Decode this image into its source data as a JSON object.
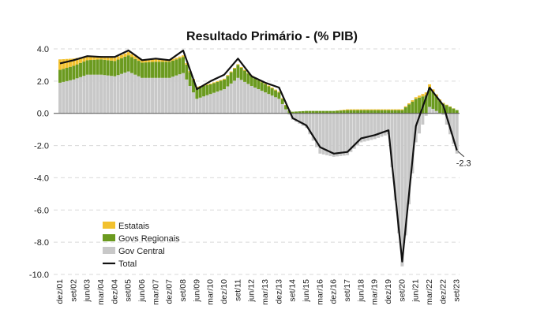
{
  "title": "Resultado Primário - (% PIB)",
  "chart_data": {
    "type": "bar",
    "title": "Resultado Primário - (% PIB)",
    "xlabel": "",
    "ylabel": "",
    "ylim": [
      -10,
      4
    ],
    "yticks": [
      "4.0",
      "2.0",
      "0.0",
      "-2.0",
      "-4.0",
      "-6.0",
      "-8.0",
      "-10.0"
    ],
    "xticks": [
      "dez/01",
      "set/02",
      "jun/03",
      "mar/04",
      "dez/04",
      "set/05",
      "jun/06",
      "mar/07",
      "dez/07",
      "set/08",
      "jun/09",
      "mar/10",
      "dez/10",
      "set/11",
      "jun/12",
      "mar/13",
      "dez/13",
      "set/14",
      "jun/15",
      "mar/16",
      "dez/16",
      "set/17",
      "jun/18",
      "mar/19",
      "dez/19",
      "set/20",
      "jun/21",
      "mar/22",
      "dez/22",
      "set/23"
    ],
    "grid": true,
    "legend_position": "bottom-left",
    "series": [
      {
        "name": "Estatais",
        "type": "stacked-bar",
        "color": "#F2C12E",
        "points": [
          [
            "dez/01",
            0.65
          ],
          [
            "set/02",
            0.45
          ],
          [
            "jun/03",
            0.25
          ],
          [
            "mar/04",
            0.2
          ],
          [
            "dez/04",
            0.2
          ],
          [
            "set/05",
            0.2
          ],
          [
            "jun/06",
            0.15
          ],
          [
            "mar/07",
            0.15
          ],
          [
            "dez/07",
            0.1
          ],
          [
            "set/08",
            0.1
          ],
          [
            "jun/09",
            0.05
          ],
          [
            "mar/10",
            0.05
          ],
          [
            "dez/10",
            0.05
          ],
          [
            "set/11",
            0.05
          ],
          [
            "jun/12",
            0.05
          ],
          [
            "mar/13",
            0.05
          ],
          [
            "dez/13",
            0.05
          ],
          [
            "set/14",
            0.0
          ],
          [
            "jun/15",
            0.0
          ],
          [
            "mar/16",
            0.0
          ],
          [
            "dez/16",
            0.0
          ],
          [
            "set/17",
            0.05
          ],
          [
            "jun/18",
            0.05
          ],
          [
            "mar/19",
            0.05
          ],
          [
            "dez/19",
            0.05
          ],
          [
            "set/20",
            0.05
          ],
          [
            "jun/21",
            0.1
          ],
          [
            "mar/22",
            0.2
          ],
          [
            "dez/22",
            0.05
          ],
          [
            "set/23",
            0.0
          ]
        ]
      },
      {
        "name": "Govs Regionais",
        "type": "stacked-bar",
        "color": "#6B9A1F",
        "points": [
          [
            "dez/01",
            0.8
          ],
          [
            "set/02",
            0.85
          ],
          [
            "jun/03",
            0.9
          ],
          [
            "mar/04",
            0.95
          ],
          [
            "dez/04",
            0.95
          ],
          [
            "set/05",
            1.0
          ],
          [
            "jun/06",
            0.95
          ],
          [
            "mar/07",
            1.0
          ],
          [
            "dez/07",
            1.0
          ],
          [
            "set/08",
            1.0
          ],
          [
            "jun/09",
            0.7
          ],
          [
            "mar/10",
            0.6
          ],
          [
            "dez/10",
            0.6
          ],
          [
            "set/11",
            0.8
          ],
          [
            "jun/12",
            0.6
          ],
          [
            "mar/13",
            0.5
          ],
          [
            "dez/13",
            0.4
          ],
          [
            "set/14",
            0.1
          ],
          [
            "jun/15",
            0.15
          ],
          [
            "mar/16",
            0.15
          ],
          [
            "dez/16",
            0.15
          ],
          [
            "set/17",
            0.2
          ],
          [
            "jun/18",
            0.2
          ],
          [
            "mar/19",
            0.2
          ],
          [
            "dez/19",
            0.2
          ],
          [
            "set/20",
            0.2
          ],
          [
            "jun/21",
            0.9
          ],
          [
            "mar/22",
            1.2
          ],
          [
            "dez/22",
            0.6
          ],
          [
            "set/23",
            0.2
          ]
        ]
      },
      {
        "name": "Gov Central",
        "type": "stacked-bar",
        "color": "#C8C8C8",
        "points": [
          [
            "dez/01",
            1.9
          ],
          [
            "set/02",
            2.1
          ],
          [
            "jun/03",
            2.4
          ],
          [
            "mar/04",
            2.4
          ],
          [
            "dez/04",
            2.3
          ],
          [
            "set/05",
            2.6
          ],
          [
            "jun/06",
            2.2
          ],
          [
            "mar/07",
            2.2
          ],
          [
            "dez/07",
            2.2
          ],
          [
            "set/08",
            2.5
          ],
          [
            "jun/09",
            0.9
          ],
          [
            "mar/10",
            1.2
          ],
          [
            "dez/10",
            1.5
          ],
          [
            "set/11",
            2.2
          ],
          [
            "jun/12",
            1.7
          ],
          [
            "mar/13",
            1.3
          ],
          [
            "dez/13",
            0.9
          ],
          [
            "set/14",
            -0.4
          ],
          [
            "jun/15",
            -0.9
          ],
          [
            "mar/16",
            -2.5
          ],
          [
            "dez/16",
            -2.7
          ],
          [
            "set/17",
            -2.6
          ],
          [
            "jun/18",
            -1.8
          ],
          [
            "mar/19",
            -1.6
          ],
          [
            "dez/19",
            -1.3
          ],
          [
            "set/20",
            -9.5
          ],
          [
            "jun/21",
            -1.8
          ],
          [
            "mar/22",
            0.4
          ],
          [
            "dez/22",
            -0.1
          ],
          [
            "set/23",
            -2.5
          ]
        ]
      },
      {
        "name": "Total",
        "type": "line",
        "color": "#111111",
        "points": [
          [
            "dez/01",
            3.1
          ],
          [
            "set/02",
            3.3
          ],
          [
            "jun/03",
            3.55
          ],
          [
            "mar/04",
            3.5
          ],
          [
            "dez/04",
            3.5
          ],
          [
            "set/05",
            3.9
          ],
          [
            "jun/06",
            3.3
          ],
          [
            "mar/07",
            3.4
          ],
          [
            "dez/07",
            3.3
          ],
          [
            "set/08",
            3.9
          ],
          [
            "jun/09",
            1.5
          ],
          [
            "mar/10",
            2.0
          ],
          [
            "dez/10",
            2.4
          ],
          [
            "set/11",
            3.4
          ],
          [
            "jun/12",
            2.3
          ],
          [
            "mar/13",
            1.9
          ],
          [
            "dez/13",
            1.6
          ],
          [
            "set/14",
            -0.3
          ],
          [
            "jun/15",
            -0.75
          ],
          [
            "mar/16",
            -2.1
          ],
          [
            "dez/16",
            -2.5
          ],
          [
            "set/17",
            -2.4
          ],
          [
            "jun/18",
            -1.55
          ],
          [
            "mar/19",
            -1.35
          ],
          [
            "dez/19",
            -1.05
          ],
          [
            "set/20",
            -9.2
          ],
          [
            "jun/21",
            -0.8
          ],
          [
            "mar/22",
            1.6
          ],
          [
            "dez/22",
            0.5
          ],
          [
            "set/23",
            -2.3
          ]
        ]
      }
    ],
    "annotations": [
      {
        "text": "-2.3",
        "at": "set/23",
        "value": -2.3
      }
    ]
  }
}
